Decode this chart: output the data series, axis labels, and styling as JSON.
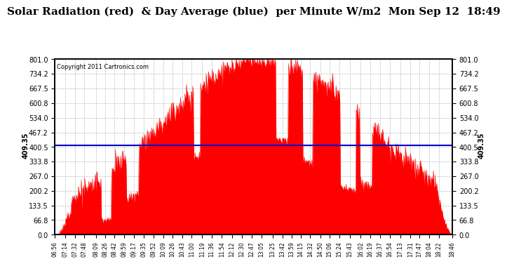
{
  "title": "Solar Radiation (red)  & Day Average (blue)  per Minute W/m2  Mon Sep 12  18:49",
  "copyright": "Copyright 2011 Cartronics.com",
  "avg_value": 409.35,
  "avg_label": "409.35",
  "y_max": 801.0,
  "y_min": 0.0,
  "y_ticks": [
    0.0,
    66.8,
    133.5,
    200.2,
    267.0,
    333.8,
    400.5,
    467.2,
    534.0,
    600.8,
    667.5,
    734.2,
    801.0
  ],
  "y_tick_labels": [
    "0.0",
    "66.8",
    "133.5",
    "200.2",
    "267.0",
    "333.8",
    "400.5",
    "467.2",
    "534.0",
    "600.8",
    "667.5",
    "734.2",
    "801.0"
  ],
  "x_tick_labels": [
    "06:56",
    "07:14",
    "07:32",
    "07:48",
    "08:09",
    "08:26",
    "08:42",
    "08:59",
    "09:17",
    "09:35",
    "09:52",
    "10:09",
    "10:26",
    "10:43",
    "11:00",
    "11:19",
    "11:36",
    "11:54",
    "12:12",
    "12:30",
    "12:47",
    "13:05",
    "13:25",
    "13:42",
    "13:59",
    "14:15",
    "14:32",
    "14:50",
    "15:06",
    "15:24",
    "15:43",
    "16:02",
    "16:19",
    "16:37",
    "16:54",
    "17:13",
    "17:31",
    "17:47",
    "18:04",
    "18:22",
    "18:46"
  ],
  "bg_color": "#ffffff",
  "fill_color": "#ff0000",
  "line_color": "#0000cc",
  "grid_color": "#aaaaaa",
  "title_fontsize": 11,
  "t_start_hhmm": "06:56",
  "t_end_hhmm": "18:46",
  "t_peak_hhmm": "13:10",
  "peak_value": 801.0,
  "sigma": 195
}
